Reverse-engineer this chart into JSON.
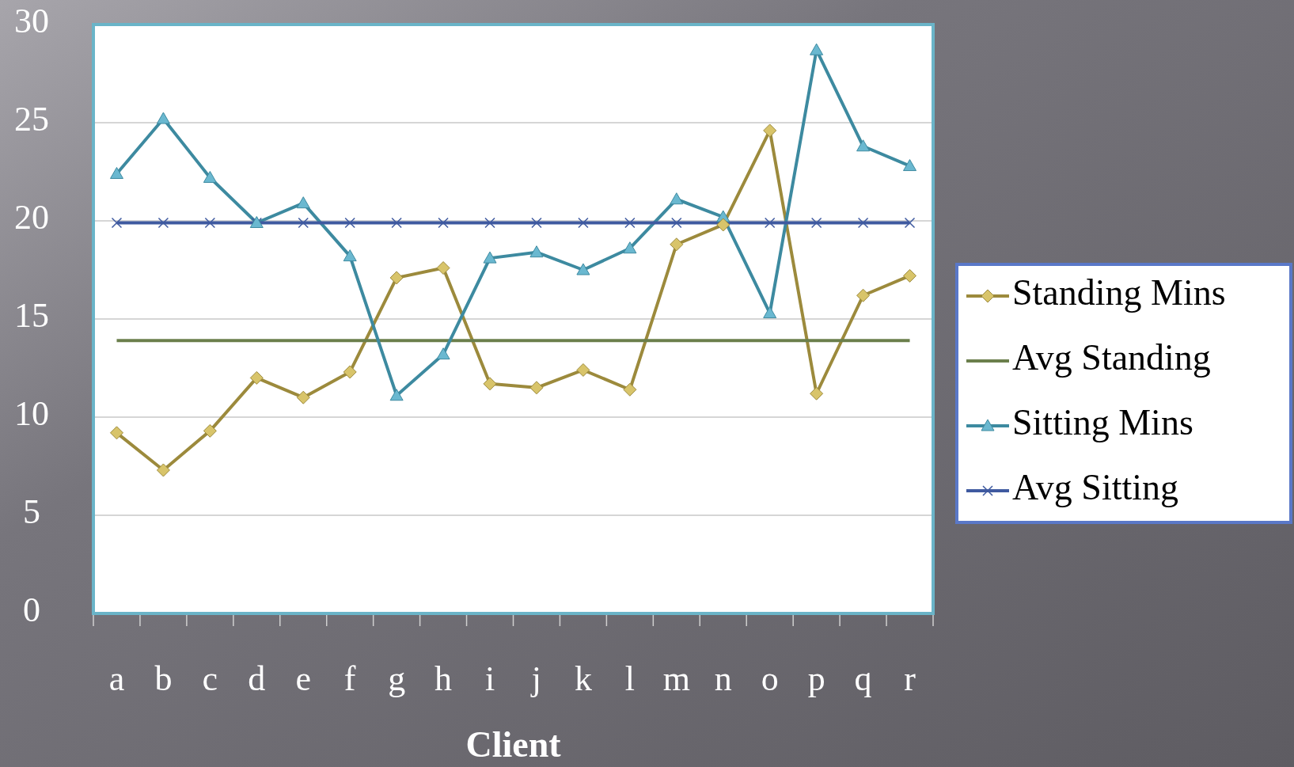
{
  "chart_data": {
    "type": "line",
    "xlabel": "Client",
    "categories": [
      "a",
      "b",
      "c",
      "d",
      "e",
      "f",
      "g",
      "h",
      "i",
      "j",
      "k",
      "l",
      "m",
      "n",
      "o",
      "p",
      "q",
      "r"
    ],
    "series": [
      {
        "name": "Standing Mins",
        "color": "#9c8a3c",
        "marker": "diamond",
        "values": [
          9.2,
          7.3,
          9.3,
          12.0,
          11.0,
          12.3,
          17.1,
          17.6,
          11.7,
          11.5,
          12.4,
          11.4,
          18.8,
          19.8,
          24.6,
          11.2,
          16.2,
          17.2
        ]
      },
      {
        "name": "Avg Standing",
        "color": "#6b7f4c",
        "marker": "none",
        "values": [
          13.9,
          13.9,
          13.9,
          13.9,
          13.9,
          13.9,
          13.9,
          13.9,
          13.9,
          13.9,
          13.9,
          13.9,
          13.9,
          13.9,
          13.9,
          13.9,
          13.9,
          13.9
        ]
      },
      {
        "name": "Sitting Mins",
        "color": "#3d8aa0",
        "marker": "triangle",
        "values": [
          22.4,
          25.2,
          22.2,
          19.9,
          20.9,
          18.2,
          11.1,
          13.2,
          18.1,
          18.4,
          17.5,
          18.6,
          21.1,
          20.2,
          15.3,
          28.7,
          23.8,
          22.8
        ]
      },
      {
        "name": "Avg Sitting",
        "color": "#3f5aa0",
        "marker": "cross",
        "values": [
          19.9,
          19.9,
          19.9,
          19.9,
          19.9,
          19.9,
          19.9,
          19.9,
          19.9,
          19.9,
          19.9,
          19.9,
          19.9,
          19.9,
          19.9,
          19.9,
          19.9,
          19.9
        ]
      }
    ],
    "ylim": [
      0,
      30
    ],
    "yticks": [
      0,
      5,
      10,
      15,
      20,
      25,
      30
    ],
    "grid": "y",
    "legend": "right"
  }
}
